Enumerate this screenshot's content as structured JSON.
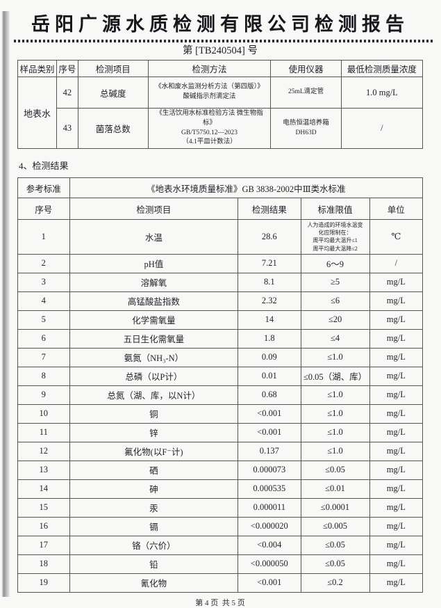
{
  "page": {
    "title": "岳阳广源水质检测有限公司检测报告",
    "report_no": "第 [TB240504] 号",
    "section4_heading": "4、检测结果",
    "footer": "第 4 页  共 5 页"
  },
  "methods_table": {
    "headers": [
      "样品类别",
      "序号",
      "检测项目",
      "检测方法",
      "使用仪器",
      "最低检测质量浓度"
    ],
    "sample_category": "地表水",
    "rows": [
      {
        "no": "42",
        "item": "总碱度",
        "method": "《水和废水监测分析方法（第四版）》\n酸碱指示剂滴定法",
        "instrument": "25mL滴定管",
        "min_conc": "1.0 mg/L"
      },
      {
        "no": "43",
        "item": "菌落总数",
        "method": "《生活饮用水标准检验方法 微生物指标》\nGB/T5750.12—2023\n（4.1平皿计数法）",
        "instrument": "电热恒温培养箱\nDH63D",
        "min_conc": "/"
      }
    ]
  },
  "results_table": {
    "ref_label": "参考标准",
    "ref_value": "《地表水环境质量标准》GB 3838-2002中Ⅲ类水标准",
    "headers": [
      "序号",
      "检测项目",
      "检测结果",
      "标准限值",
      "单位"
    ],
    "rows": [
      {
        "no": "1",
        "item": "水温",
        "result": "28.6",
        "limit": "人为造成的环境水温变\n化应限制在：\n周平均最大温升≤1\n周平均最大温降≤2",
        "unit": "℃"
      },
      {
        "no": "2",
        "item": "pH值",
        "result": "7.21",
        "limit": "6～9",
        "unit": "/"
      },
      {
        "no": "3",
        "item": "溶解氧",
        "result": "8.1",
        "limit": "≥5",
        "unit": "mg/L"
      },
      {
        "no": "4",
        "item": "高锰酸盐指数",
        "result": "2.32",
        "limit": "≤6",
        "unit": "mg/L"
      },
      {
        "no": "5",
        "item": "化学需氧量",
        "result": "14",
        "limit": "≤20",
        "unit": "mg/L"
      },
      {
        "no": "6",
        "item": "五日生化需氧量",
        "result": "1.8",
        "limit": "≤4",
        "unit": "mg/L"
      },
      {
        "no": "7",
        "item": "氨氮（NH₃-N）",
        "result": "0.09",
        "limit": "≤1.0",
        "unit": "mg/L"
      },
      {
        "no": "8",
        "item": "总磷（以P计）",
        "result": "0.01",
        "limit": "≤0.05（湖、库）",
        "unit": "mg/L"
      },
      {
        "no": "9",
        "item": "总氮（湖、库，以N计）",
        "result": "0.68",
        "limit": "≤1.0",
        "unit": "mg/L"
      },
      {
        "no": "10",
        "item": "铜",
        "result": "<0.001",
        "limit": "≤1.0",
        "unit": "mg/L"
      },
      {
        "no": "11",
        "item": "锌",
        "result": "<0.001",
        "limit": "≤1.0",
        "unit": "mg/L"
      },
      {
        "no": "12",
        "item": "氟化物(以F⁻计)",
        "result": "0.137",
        "limit": "≤1.0",
        "unit": "mg/L"
      },
      {
        "no": "13",
        "item": "硒",
        "result": "0.000073",
        "limit": "≤0.05",
        "unit": "mg/L"
      },
      {
        "no": "14",
        "item": "砷",
        "result": "0.000535",
        "limit": "≤0.01",
        "unit": "mg/L"
      },
      {
        "no": "15",
        "item": "汞",
        "result": "0.000011",
        "limit": "≤0.0001",
        "unit": "mg/L"
      },
      {
        "no": "16",
        "item": "镉",
        "result": "<0.000020",
        "limit": "≤0.005",
        "unit": "mg/L"
      },
      {
        "no": "17",
        "item": "铬（六价）",
        "result": "<0.004",
        "limit": "≤0.05",
        "unit": "mg/L"
      },
      {
        "no": "18",
        "item": "铅",
        "result": "<0.000050",
        "limit": "≤0.05",
        "unit": "mg/L"
      },
      {
        "no": "19",
        "item": "氰化物",
        "result": "<0.001",
        "limit": "≤0.2",
        "unit": "mg/L"
      }
    ]
  }
}
